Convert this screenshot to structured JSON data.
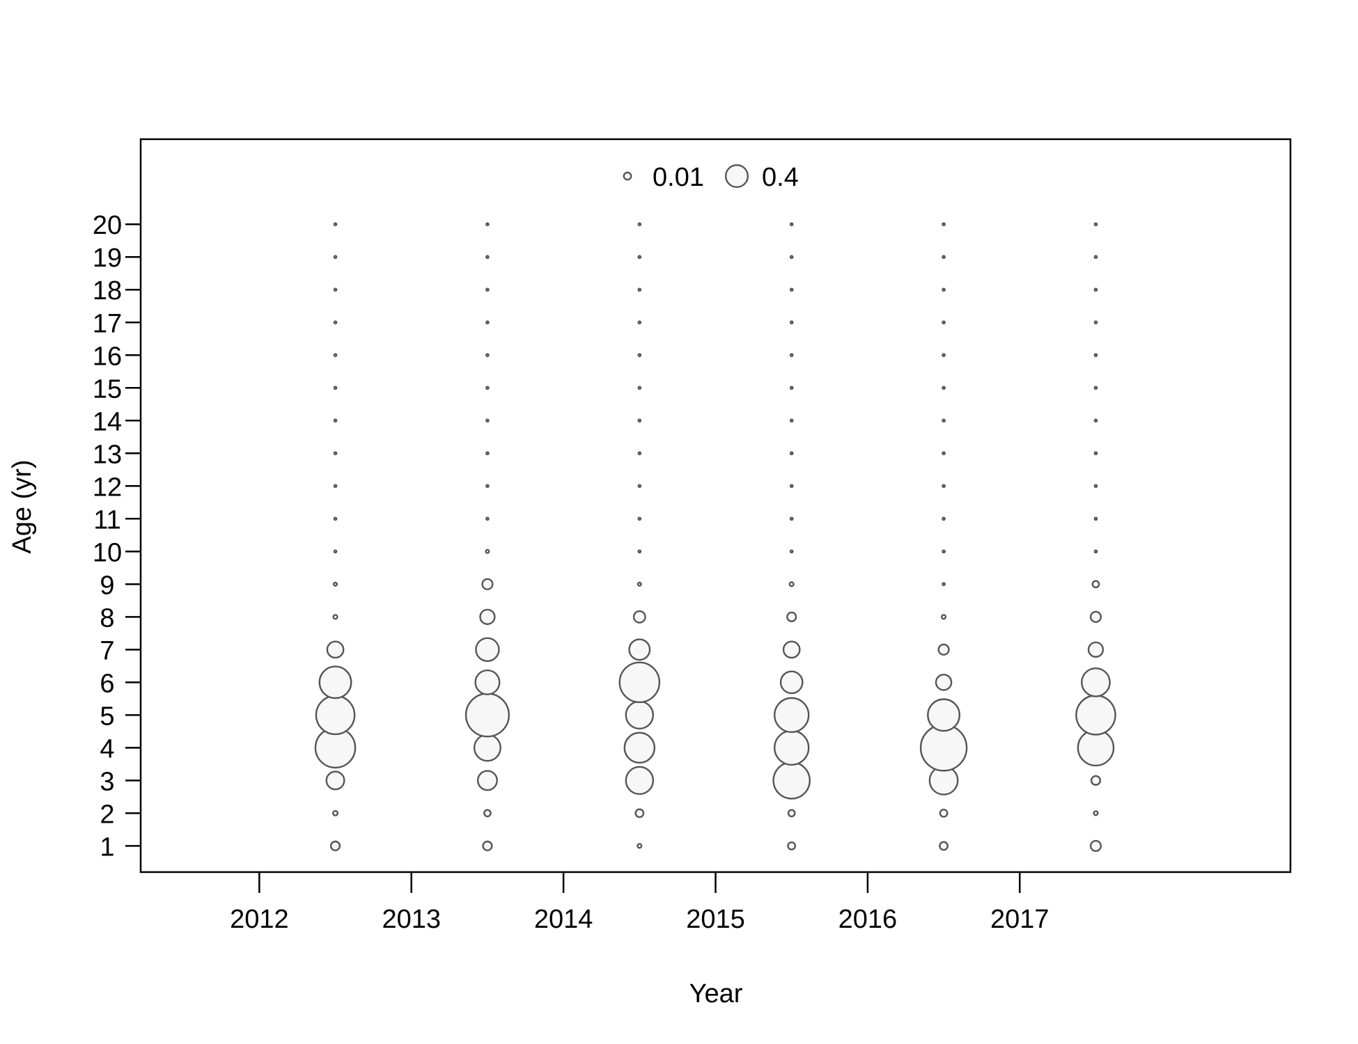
{
  "chart_data": {
    "type": "scatter",
    "subtype": "bubble",
    "xlabel": "Year",
    "ylabel": "Age (yr)",
    "x_ticks": [
      2012,
      2013,
      2014,
      2015,
      2016,
      2017
    ],
    "y_ticks": [
      1,
      2,
      3,
      4,
      5,
      6,
      7,
      8,
      9,
      10,
      11,
      12,
      13,
      14,
      15,
      16,
      17,
      18,
      19,
      20
    ],
    "xlim": [
      2011.22,
      2018.78
    ],
    "ylim": [
      0.2,
      22.6
    ],
    "grid": false,
    "bubble_color": "#555555",
    "bubble_fill": "#f7f7f7",
    "legend": {
      "placement": "top-center",
      "entries": [
        {
          "label": "0.01",
          "value": 0.01
        },
        {
          "label": "0.4",
          "value": 0.4
        }
      ]
    },
    "series": [
      {
        "x": 2012.5,
        "values": [
          0.015,
          0.004,
          0.06,
          0.3,
          0.28,
          0.19,
          0.05,
          0.003,
          0.002,
          0.001,
          0.001,
          0.001,
          0.001,
          0.001,
          0.001,
          0.001,
          0.001,
          0.001,
          0.001,
          0.001
        ]
      },
      {
        "x": 2013.5,
        "values": [
          0.015,
          0.008,
          0.07,
          0.13,
          0.35,
          0.11,
          0.1,
          0.04,
          0.02,
          0.002,
          0.001,
          0.001,
          0.001,
          0.001,
          0.001,
          0.001,
          0.001,
          0.001,
          0.001,
          0.001
        ]
      },
      {
        "x": 2014.5,
        "values": [
          0.003,
          0.012,
          0.14,
          0.17,
          0.14,
          0.3,
          0.08,
          0.025,
          0.002,
          0.001,
          0.001,
          0.001,
          0.001,
          0.001,
          0.001,
          0.001,
          0.001,
          0.001,
          0.001,
          0.001
        ]
      },
      {
        "x": 2015.5,
        "values": [
          0.01,
          0.008,
          0.25,
          0.22,
          0.22,
          0.09,
          0.05,
          0.015,
          0.003,
          0.001,
          0.001,
          0.001,
          0.001,
          0.001,
          0.001,
          0.001,
          0.001,
          0.001,
          0.001,
          0.001
        ]
      },
      {
        "x": 2016.5,
        "values": [
          0.012,
          0.01,
          0.15,
          0.4,
          0.19,
          0.045,
          0.02,
          0.003,
          0.001,
          0.001,
          0.001,
          0.001,
          0.001,
          0.001,
          0.001,
          0.001,
          0.001,
          0.001,
          0.001,
          0.001
        ]
      },
      {
        "x": 2017.5,
        "values": [
          0.02,
          0.003,
          0.015,
          0.24,
          0.29,
          0.15,
          0.04,
          0.02,
          0.008,
          0.001,
          0.001,
          0.001,
          0.001,
          0.001,
          0.001,
          0.001,
          0.001,
          0.001,
          0.001,
          0.001
        ]
      }
    ]
  }
}
